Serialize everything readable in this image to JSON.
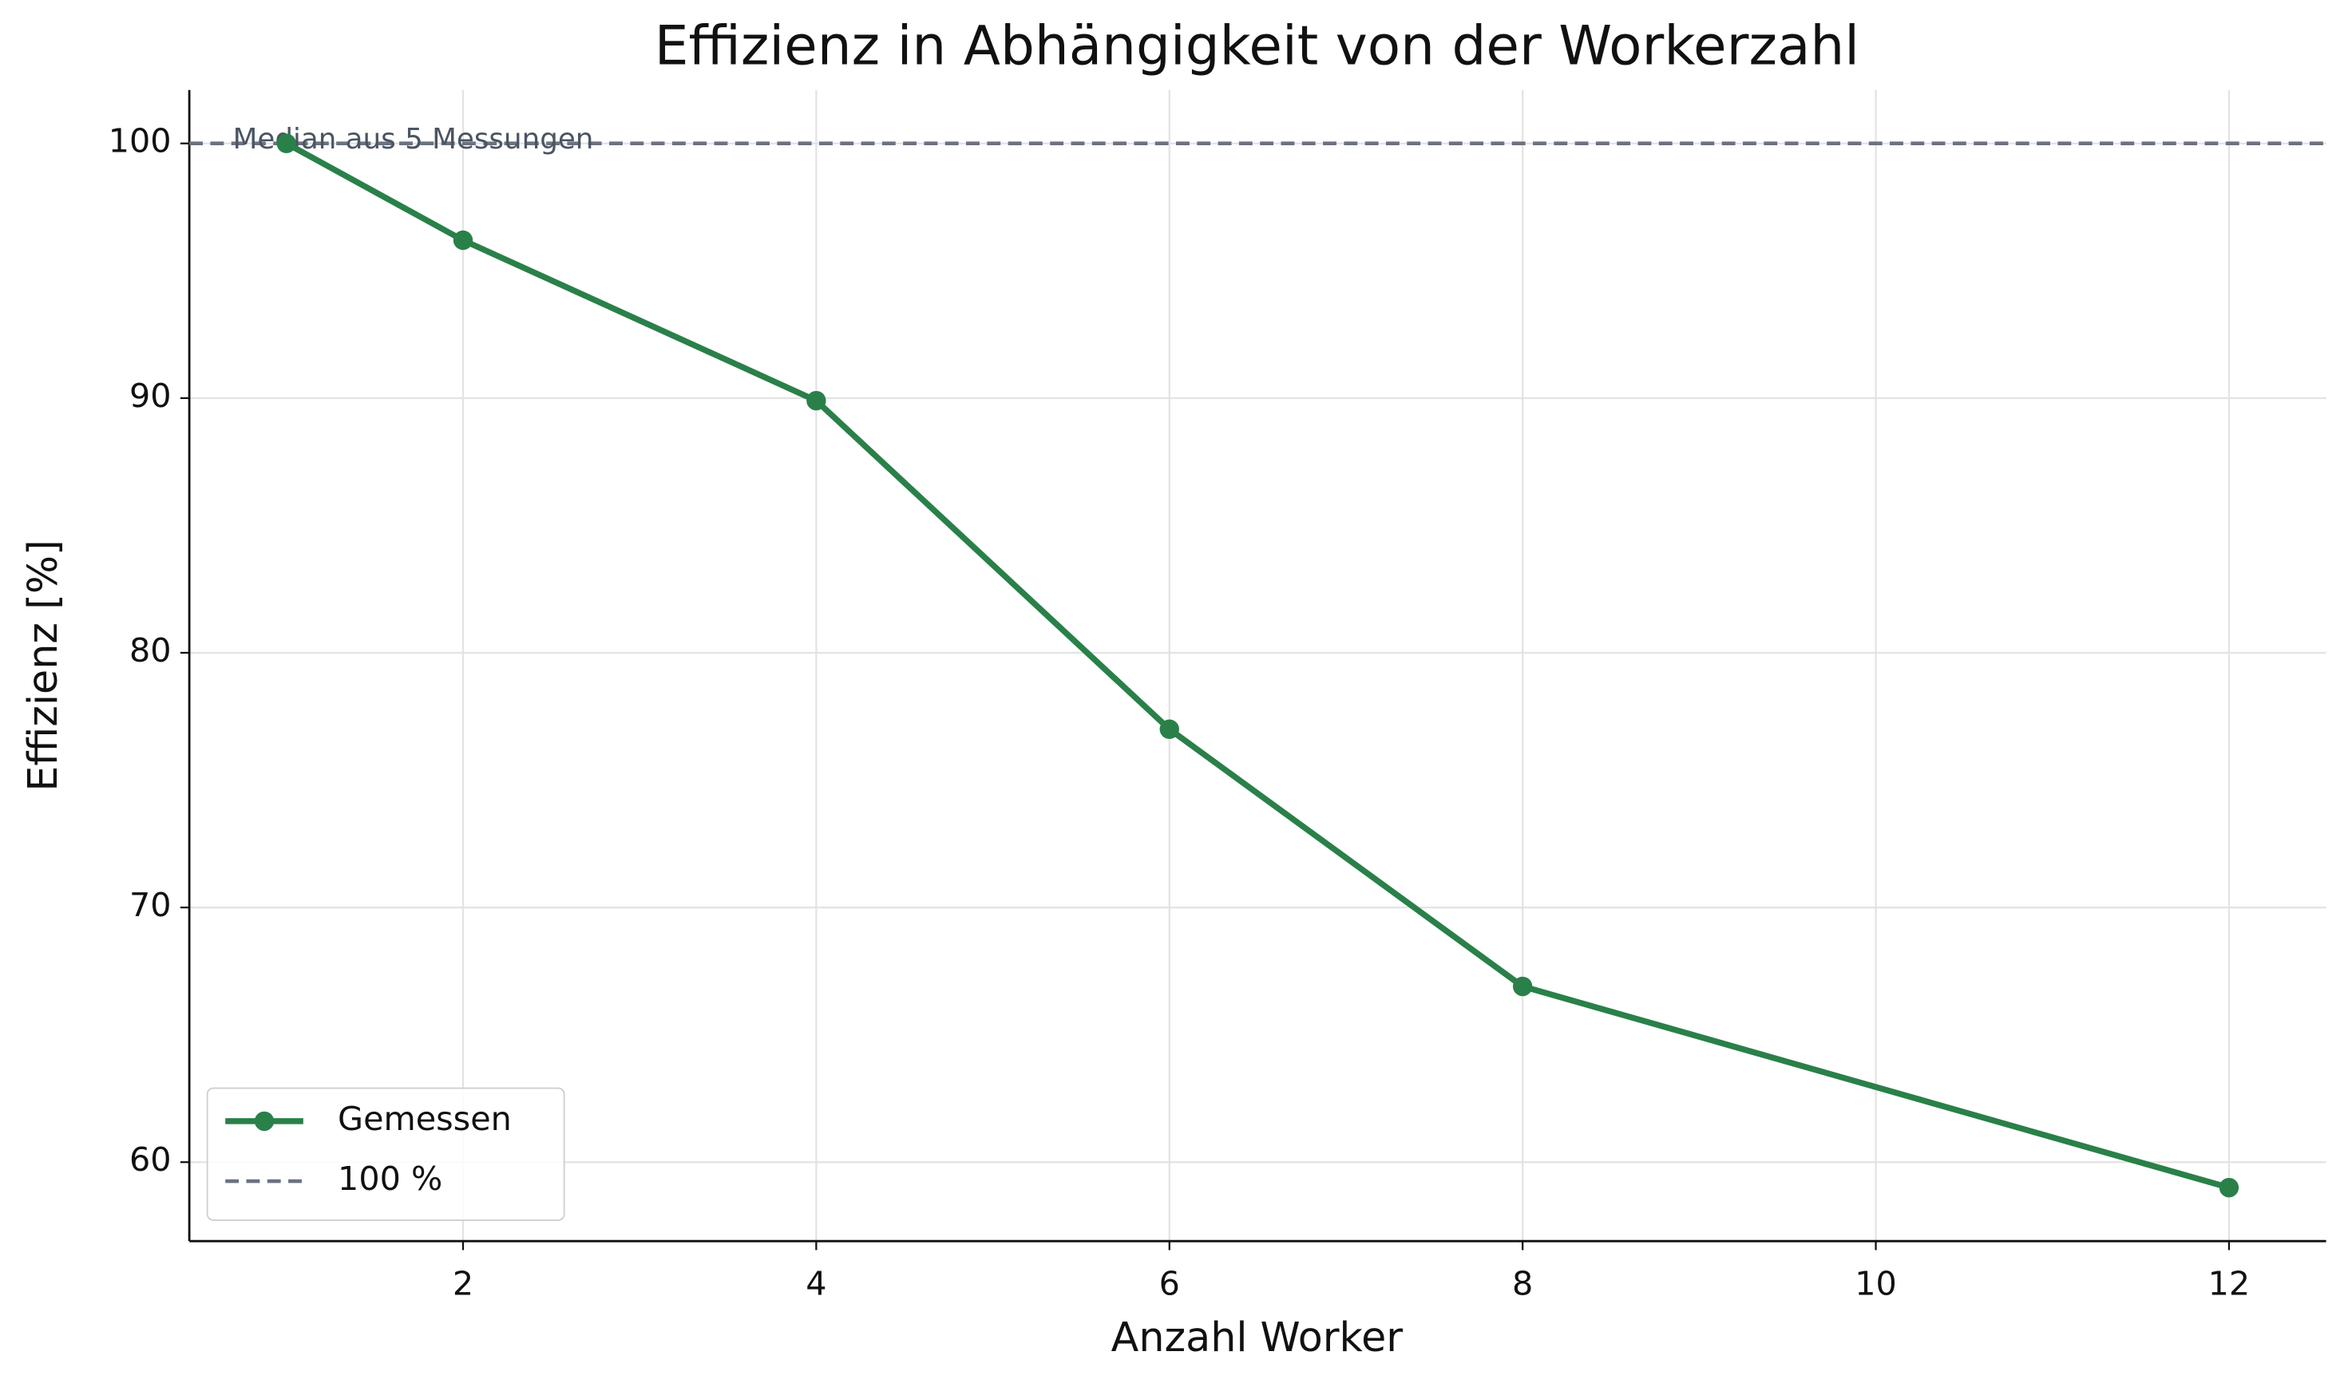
{
  "chart_data": {
    "type": "line",
    "title": "Effizienz in Abhängigkeit von der Workerzahl",
    "xlabel": "Anzahl Worker",
    "ylabel": "Effizienz [%]",
    "x": [
      1,
      2,
      4,
      6,
      8,
      12
    ],
    "series": [
      {
        "name": "Gemessen",
        "color": "#2a8049",
        "values": [
          100,
          96.2,
          89.9,
          77.0,
          66.9,
          59.0
        ]
      }
    ],
    "hline": {
      "name": "100 %",
      "value": 100,
      "color": "#6b7280"
    },
    "annotation": "Median aus 5 Messungen",
    "xlim": [
      0.45,
      12.55
    ],
    "ylim": [
      56.9,
      102.1
    ],
    "xticks": [
      2,
      4,
      6,
      8,
      10,
      12
    ],
    "yticks": [
      60,
      70,
      80,
      90,
      100
    ],
    "grid": true,
    "legend": "lower left"
  }
}
